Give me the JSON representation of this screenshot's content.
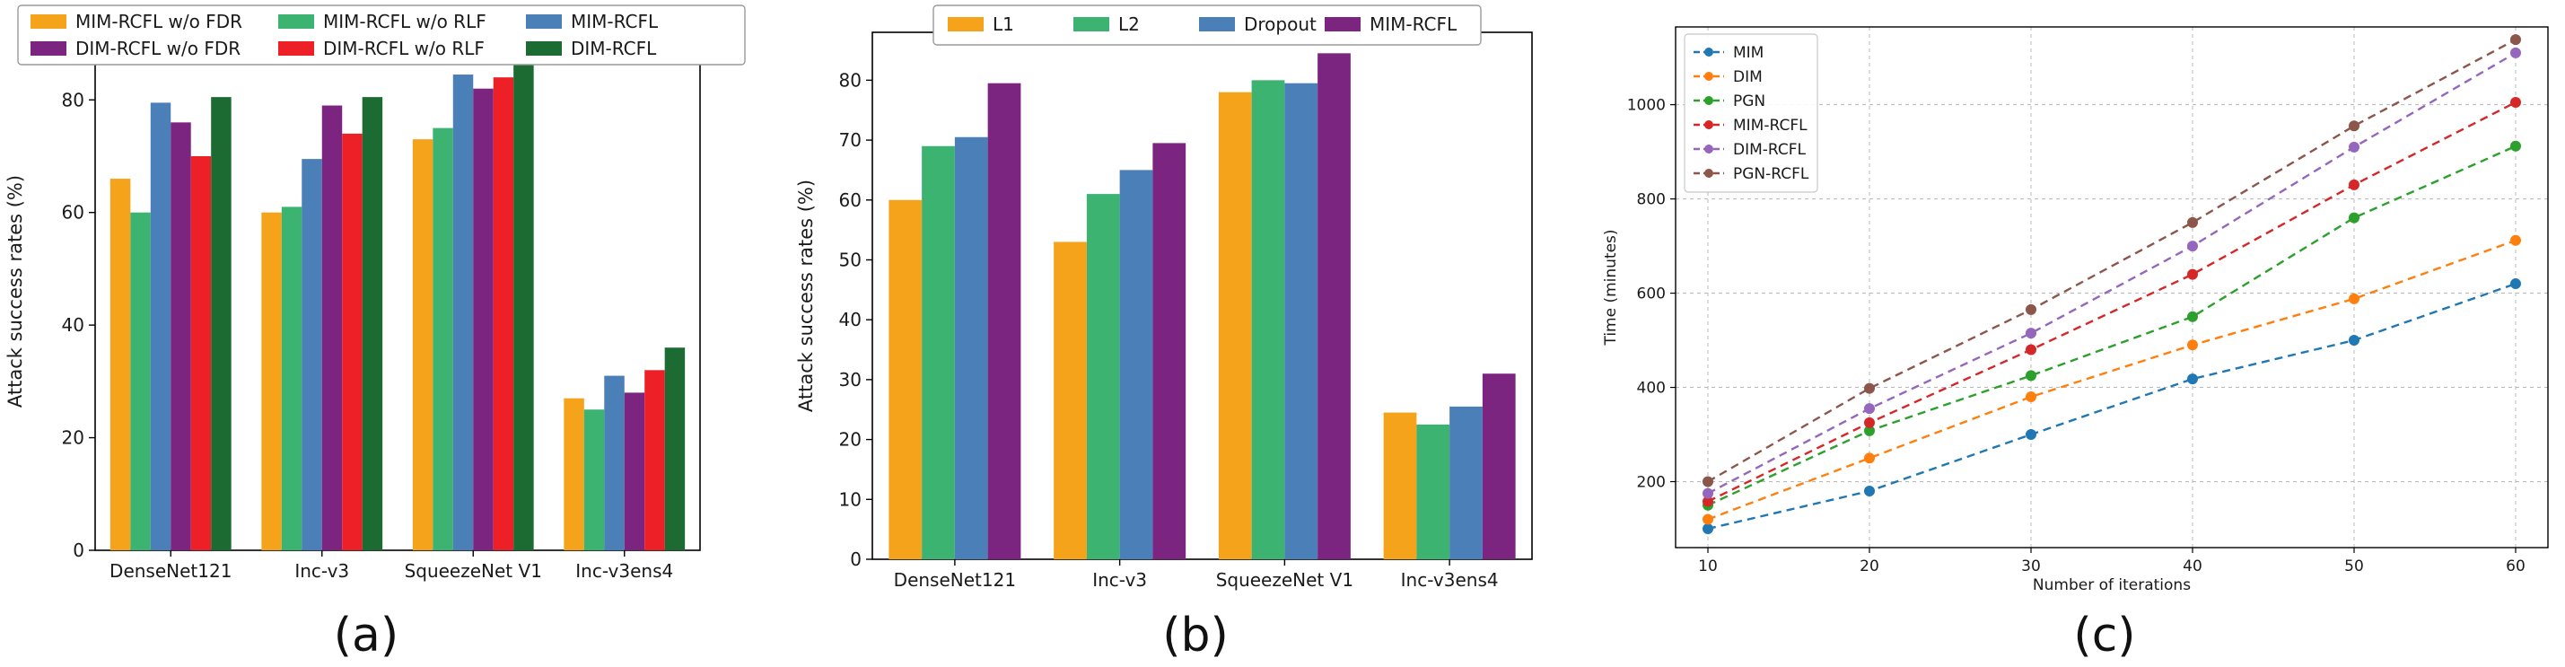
{
  "chart_data": [
    {
      "id": "a",
      "type": "bar",
      "caption": "(a)",
      "ylabel": "Attack success rates (%)",
      "xlabel": "",
      "ylim": [
        0,
        92
      ],
      "yticks": [
        0,
        20,
        40,
        60,
        80
      ],
      "categories": [
        "DenseNet121",
        "Inc-v3",
        "SqueezeNet V1",
        "Inc-v3ens4"
      ],
      "legend_position": "top (outside, above plot)",
      "series": [
        {
          "name": "MIM-RCFL w/o FDR",
          "color": "#f5a31a",
          "values": [
            66,
            60,
            73,
            27
          ]
        },
        {
          "name": "MIM-RCFL w/o RLF",
          "color": "#3cb371",
          "values": [
            60,
            61,
            75,
            25
          ]
        },
        {
          "name": "MIM-RCFL",
          "color": "#4a7fb8",
          "values": [
            79.5,
            69.5,
            84.5,
            31
          ]
        },
        {
          "name": "DIM-RCFL w/o FDR",
          "color": "#7b2580",
          "values": [
            76,
            79,
            82,
            28
          ]
        },
        {
          "name": "DIM-RCFL w/o RLF",
          "color": "#ee2027",
          "values": [
            70,
            74,
            84,
            32
          ]
        },
        {
          "name": "DIM-RCFL",
          "color": "#1c6b33",
          "values": [
            80.5,
            80.5,
            88.5,
            36
          ]
        }
      ]
    },
    {
      "id": "b",
      "type": "bar",
      "caption": "(b)",
      "ylabel": "Attack success rates (%)",
      "xlabel": "",
      "ylim": [
        0,
        88
      ],
      "yticks": [
        0,
        10,
        20,
        30,
        40,
        50,
        60,
        70,
        80
      ],
      "categories": [
        "DenseNet121",
        "Inc-v3",
        "SqueezeNet V1",
        "Inc-v3ens4"
      ],
      "legend_position": "top (outside, above plot)",
      "series": [
        {
          "name": "L1",
          "color": "#f5a31a",
          "values": [
            60,
            53,
            78,
            24.5
          ]
        },
        {
          "name": "L2",
          "color": "#3cb371",
          "values": [
            69,
            61,
            80,
            22.5
          ]
        },
        {
          "name": "Dropout",
          "color": "#4a7fb8",
          "values": [
            70.5,
            65,
            79.5,
            25.5
          ]
        },
        {
          "name": "MIM-RCFL",
          "color": "#7b2580",
          "values": [
            79.5,
            69.5,
            84.5,
            31
          ]
        }
      ]
    },
    {
      "id": "c",
      "type": "line",
      "caption": "(c)",
      "xlabel": "Number of iterations",
      "ylabel": "Time (minutes)",
      "xlim": [
        8,
        62
      ],
      "ylim": [
        60,
        1165
      ],
      "xticks": [
        10,
        20,
        30,
        40,
        50,
        60
      ],
      "yticks": [
        200,
        400,
        600,
        800,
        1000
      ],
      "grid": true,
      "legend_position": "upper-left",
      "x": [
        10,
        20,
        30,
        40,
        50,
        60
      ],
      "series": [
        {
          "name": "MIM",
          "color": "#1f77b4",
          "values": [
            100,
            180,
            300,
            418,
            500,
            620
          ]
        },
        {
          "name": "DIM",
          "color": "#ff7f0e",
          "values": [
            120,
            250,
            380,
            490,
            588,
            712
          ]
        },
        {
          "name": "PGN",
          "color": "#2ca02c",
          "values": [
            150,
            308,
            425,
            550,
            760,
            912
          ]
        },
        {
          "name": "MIM-RCFL",
          "color": "#d62728",
          "values": [
            158,
            325,
            480,
            640,
            830,
            1005
          ]
        },
        {
          "name": "DIM-RCFL",
          "color": "#9467bd",
          "values": [
            175,
            355,
            515,
            700,
            910,
            1110
          ]
        },
        {
          "name": "PGN-RCFL",
          "color": "#8c564b",
          "values": [
            200,
            398,
            565,
            750,
            955,
            1138
          ]
        }
      ]
    }
  ]
}
